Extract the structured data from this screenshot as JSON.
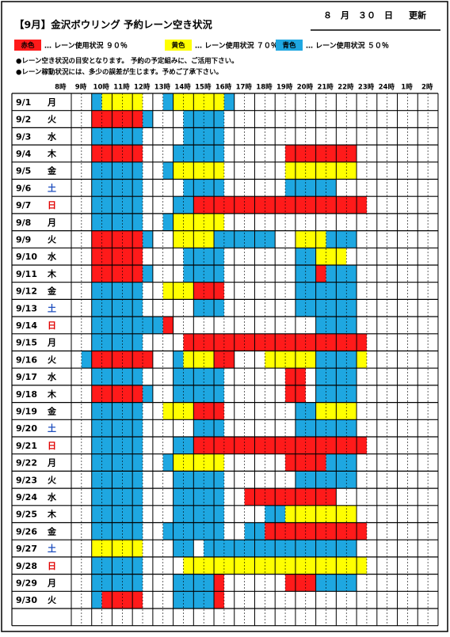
{
  "header": {
    "title": "【9月】金沢ボウリング 予約レーン空き状況",
    "updated": "８　月　３０　日",
    "updated_suffix": "更新"
  },
  "legend": [
    {
      "swatch": "赤色",
      "text": "… レーン使用状況 ９０％"
    },
    {
      "swatch": "黄色",
      "text": "… レーン使用状況 ７０％"
    },
    {
      "swatch": "青色",
      "text": "… レーン使用状況 ５０％"
    }
  ],
  "notes": [
    "●レーン空き状況の目安となります。 予約の予定組みに、ご活用下さい。",
    "●レーン稼動状況には、多少の誤差が生じます。予めご了承下さい。"
  ],
  "hours": [
    "8時",
    "9時",
    "10時",
    "11時",
    "12時",
    "13時",
    "14時",
    "15時",
    "16時",
    "17時",
    "18時",
    "19時",
    "20時",
    "21時",
    "22時",
    "23時",
    "24時",
    "1時",
    "2時"
  ],
  "rows": [
    {
      "date": "9/1",
      "day": "月"
    },
    {
      "date": "9/2",
      "day": "火"
    },
    {
      "date": "9/3",
      "day": "水"
    },
    {
      "date": "9/4",
      "day": "木"
    },
    {
      "date": "9/5",
      "day": "金"
    },
    {
      "date": "9/6",
      "day": "土"
    },
    {
      "date": "9/7",
      "day": "日"
    },
    {
      "date": "9/8",
      "day": "月"
    },
    {
      "date": "9/9",
      "day": "火"
    },
    {
      "date": "9/10",
      "day": "水"
    },
    {
      "date": "9/11",
      "day": "木"
    },
    {
      "date": "9/12",
      "day": "金"
    },
    {
      "date": "9/13",
      "day": "土"
    },
    {
      "date": "9/14",
      "day": "日"
    },
    {
      "date": "9/15",
      "day": "月"
    },
    {
      "date": "9/16",
      "day": "火"
    },
    {
      "date": "9/17",
      "day": "水"
    },
    {
      "date": "9/18",
      "day": "木"
    },
    {
      "date": "9/19",
      "day": "金"
    },
    {
      "date": "9/20",
      "day": "土"
    },
    {
      "date": "9/21",
      "day": "日"
    },
    {
      "date": "9/22",
      "day": "月"
    },
    {
      "date": "9/23",
      "day": "火"
    },
    {
      "date": "9/24",
      "day": "水"
    },
    {
      "date": "9/25",
      "day": "木"
    },
    {
      "date": "9/26",
      "day": "金"
    },
    {
      "date": "9/27",
      "day": "土"
    },
    {
      "date": "9/28",
      "day": "日"
    },
    {
      "date": "9/29",
      "day": "月"
    },
    {
      "date": "9/30",
      "day": "火"
    }
  ]
}
